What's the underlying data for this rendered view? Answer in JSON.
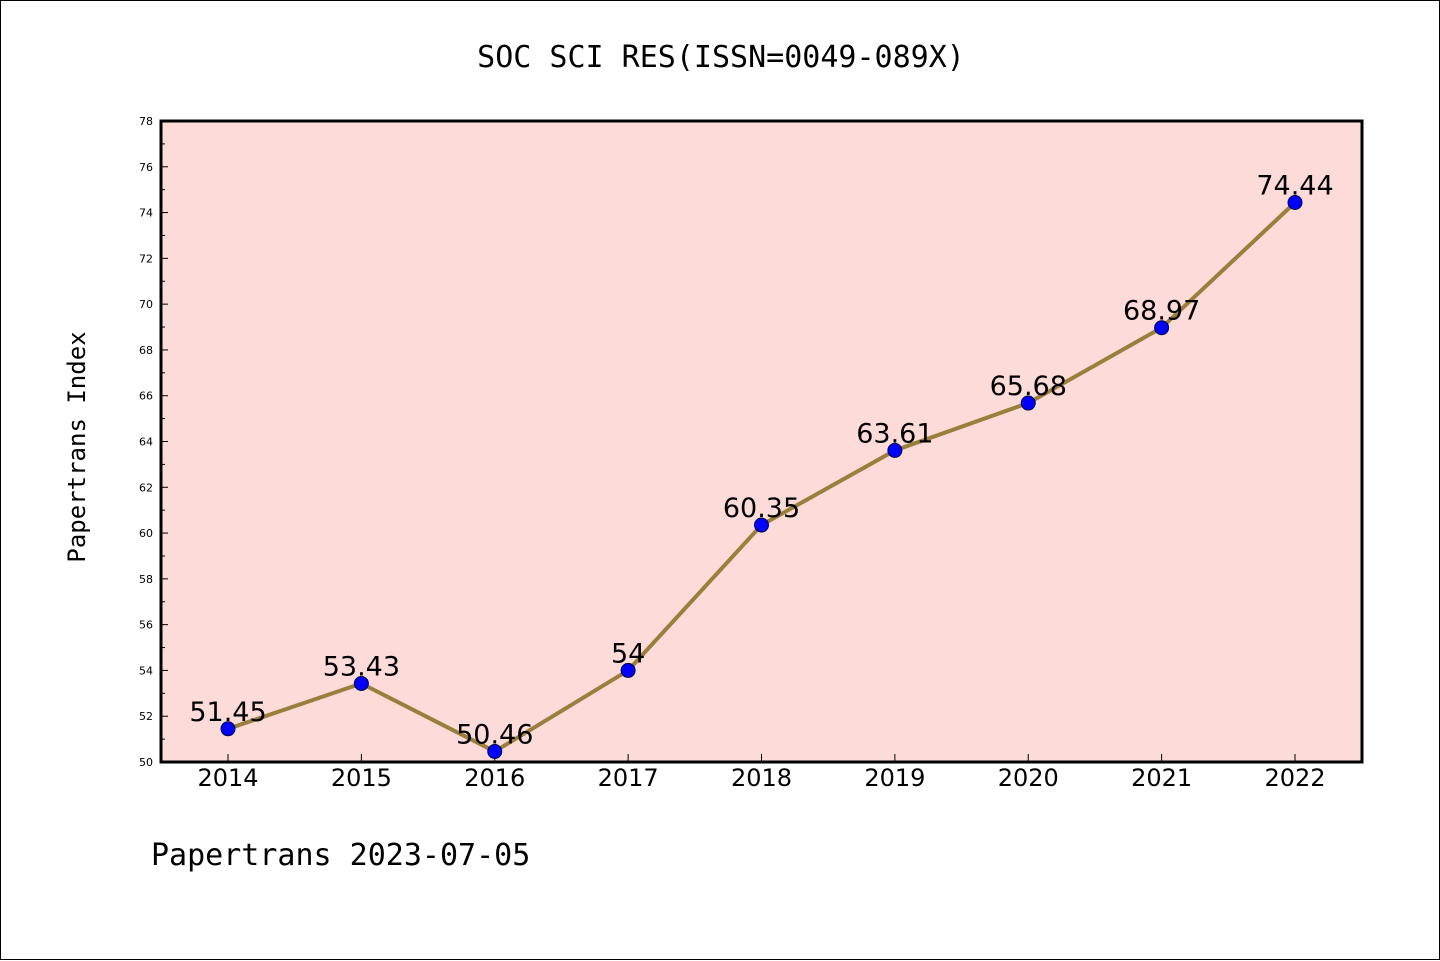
{
  "chart_data": {
    "type": "line",
    "title": "SOC SCI RES(ISSN=0049-089X)",
    "xlabel": "",
    "ylabel": "Papertrans Index",
    "footer": "Papertrans 2023-07-05",
    "categories": [
      "2014",
      "2015",
      "2016",
      "2017",
      "2018",
      "2019",
      "2020",
      "2021",
      "2022"
    ],
    "series": [
      {
        "values": [
          51.45,
          53.43,
          50.46,
          54,
          60.35,
          63.61,
          65.68,
          68.97,
          74.44
        ],
        "labels": [
          "51.45",
          "53.43",
          "50.46",
          "54",
          "60.35",
          "63.61",
          "65.68",
          "68.97",
          "74.44"
        ],
        "line_color": "#9a7f3c",
        "marker_color": "#0000ff"
      }
    ],
    "ylim": [
      50,
      78
    ],
    "yticks": [
      "50",
      "52",
      "54",
      "56",
      "58",
      "60",
      "62",
      "64",
      "66",
      "68",
      "70",
      "72",
      "74",
      "76",
      "78"
    ],
    "plot_background": "#fddbd9",
    "grid": false,
    "legend": "none"
  }
}
